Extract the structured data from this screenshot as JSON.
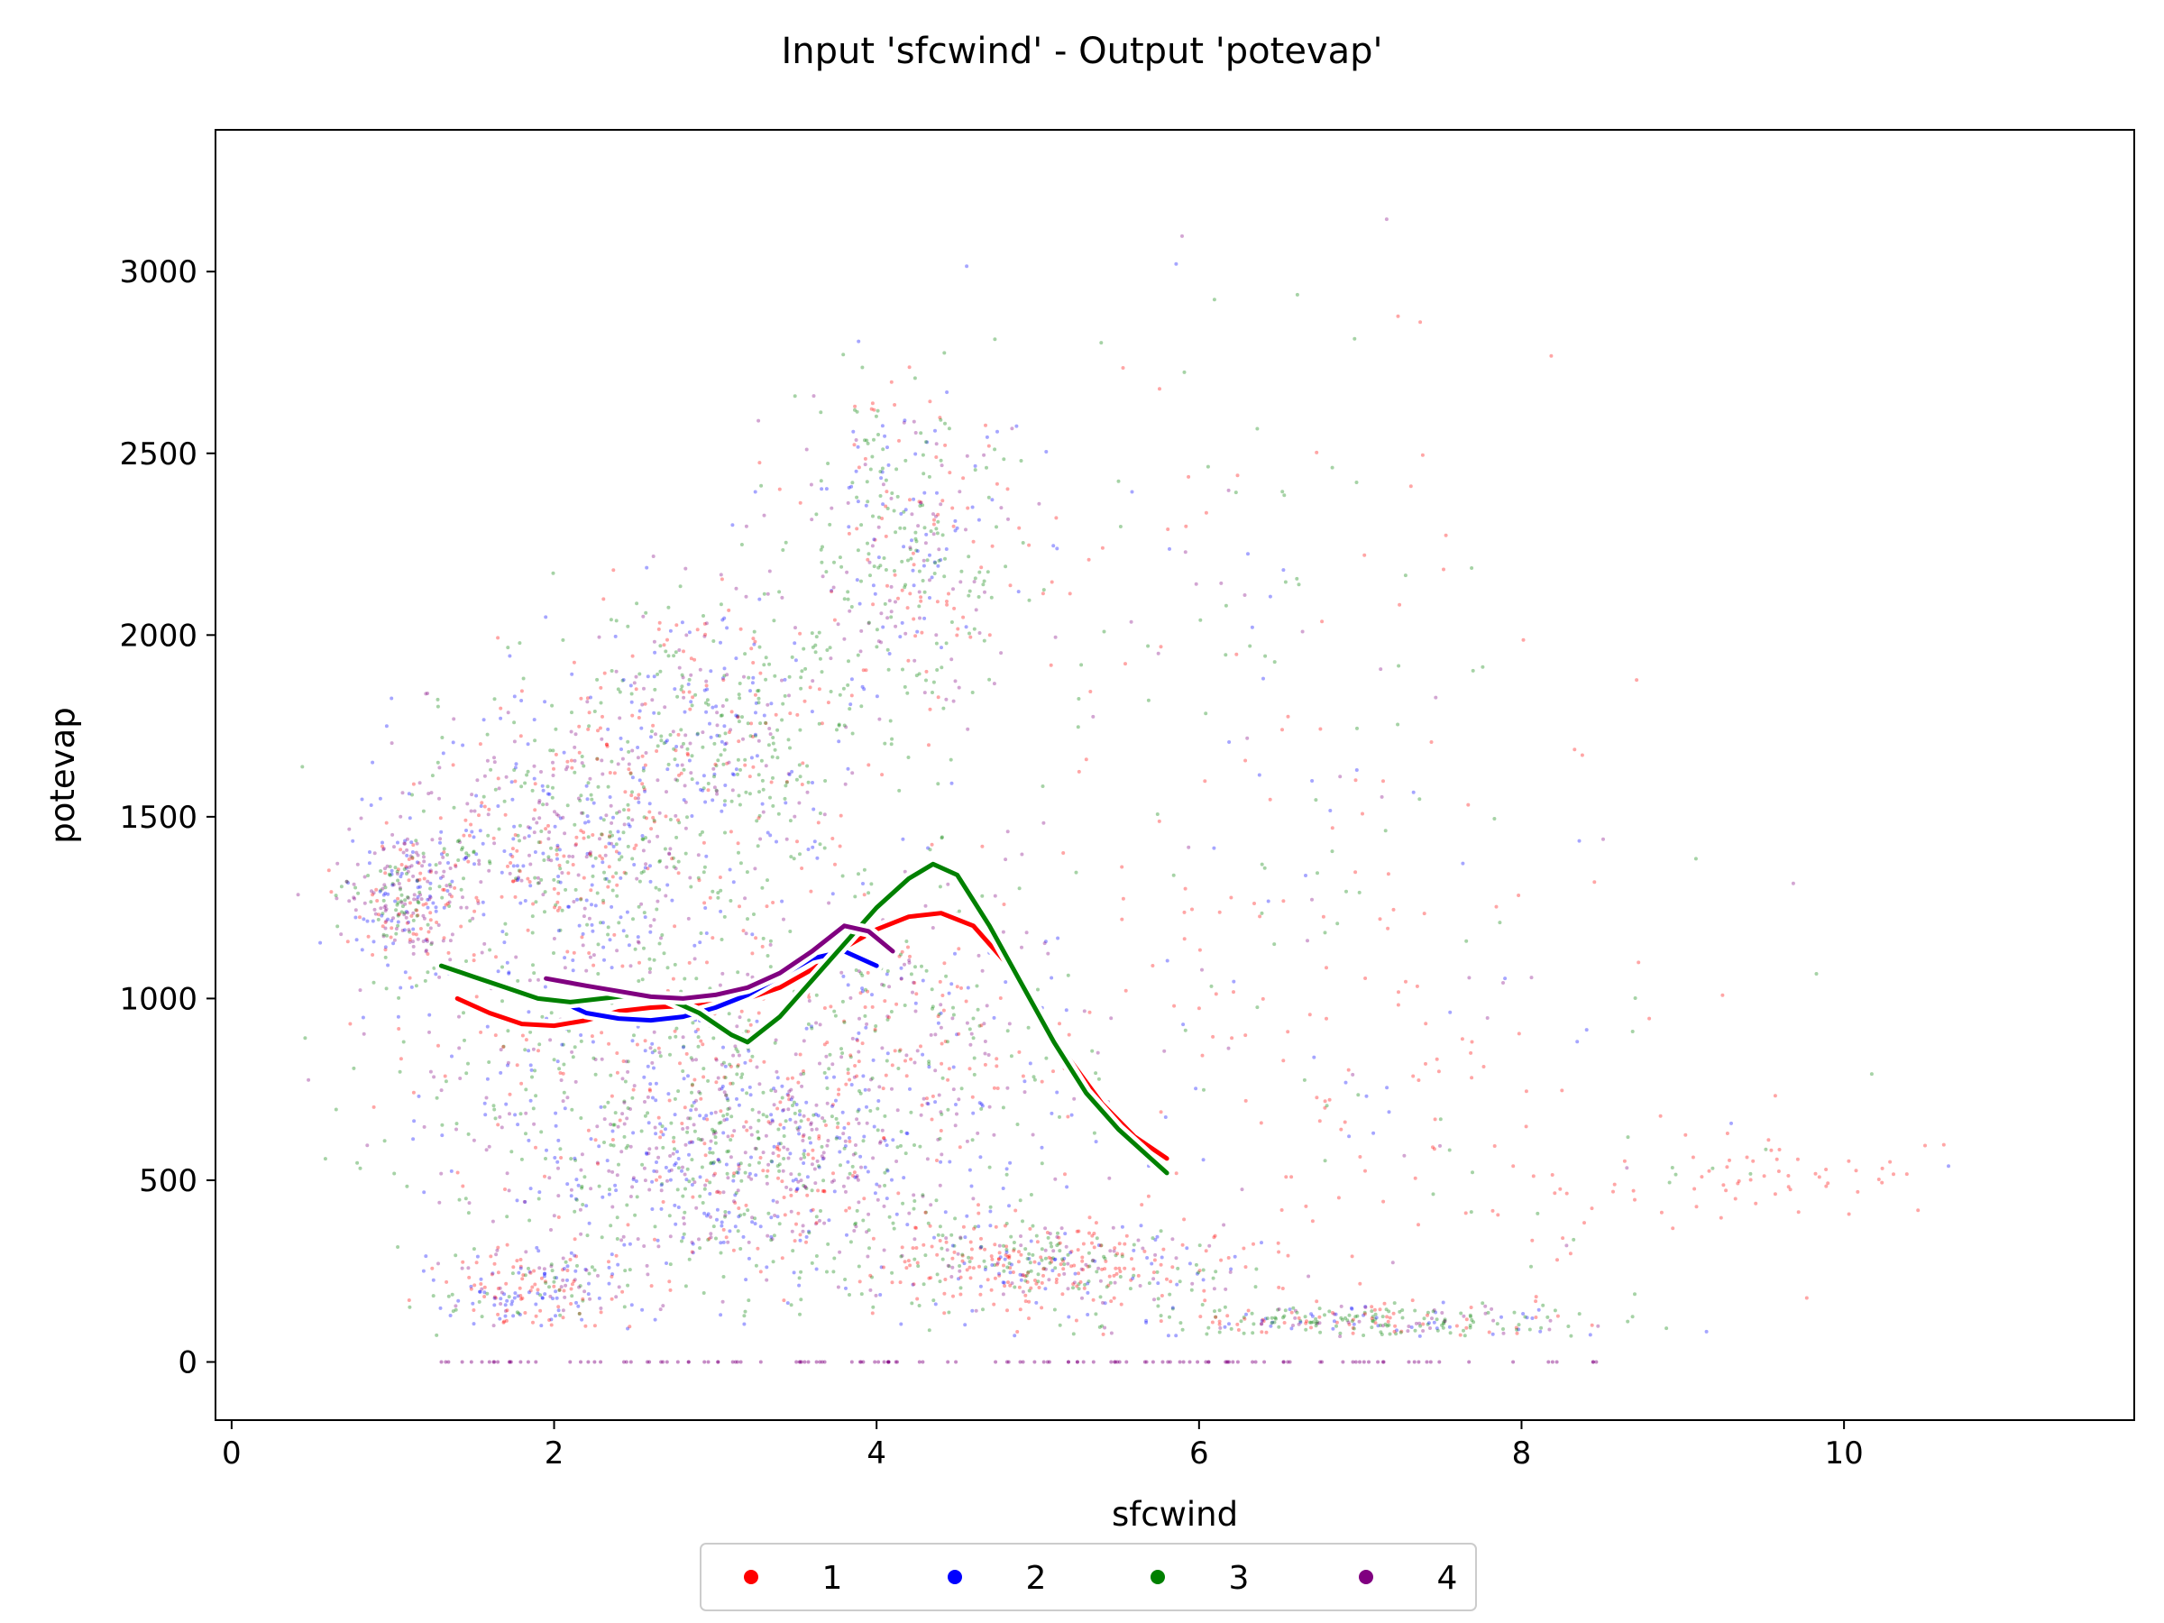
{
  "chart_data": {
    "type": "scatter",
    "title": "Input 'sfcwind' - Output 'potevap'",
    "xlabel": "sfcwind",
    "ylabel": "potevap",
    "xlim": [
      -0.1,
      11.8
    ],
    "ylim": [
      -160,
      3390
    ],
    "xticks": [
      0,
      2,
      4,
      6,
      8,
      10
    ],
    "yticks": [
      0,
      500,
      1000,
      1500,
      2000,
      2500,
      3000
    ],
    "legend_position": "bottom-center (below axes)",
    "grid": false,
    "series": [
      {
        "name": "1",
        "color": "#ff0000",
        "trend": [
          [
            1.4,
            1000
          ],
          [
            1.6,
            960
          ],
          [
            1.8,
            930
          ],
          [
            2.0,
            925
          ],
          [
            2.2,
            940
          ],
          [
            2.4,
            965
          ],
          [
            2.6,
            975
          ],
          [
            2.8,
            980
          ],
          [
            3.0,
            985
          ],
          [
            3.2,
            1000
          ],
          [
            3.4,
            1030
          ],
          [
            3.6,
            1080
          ],
          [
            3.8,
            1140
          ],
          [
            4.0,
            1190
          ],
          [
            4.2,
            1225
          ],
          [
            4.4,
            1235
          ],
          [
            4.6,
            1200
          ],
          [
            4.8,
            1100
          ],
          [
            5.0,
            960
          ],
          [
            5.2,
            830
          ],
          [
            5.4,
            710
          ],
          [
            5.6,
            620
          ],
          [
            5.8,
            560
          ]
        ]
      },
      {
        "name": "2",
        "color": "#0000ff",
        "trend": [
          [
            2.0,
            1000
          ],
          [
            2.2,
            960
          ],
          [
            2.4,
            945
          ],
          [
            2.6,
            940
          ],
          [
            2.8,
            950
          ],
          [
            3.0,
            975
          ],
          [
            3.2,
            1010
          ],
          [
            3.4,
            1060
          ],
          [
            3.6,
            1110
          ],
          [
            3.8,
            1130
          ],
          [
            4.0,
            1090
          ]
        ]
      },
      {
        "name": "3",
        "color": "#008000",
        "trend": [
          [
            1.3,
            1090
          ],
          [
            1.5,
            1060
          ],
          [
            1.7,
            1030
          ],
          [
            1.9,
            1000
          ],
          [
            2.1,
            990
          ],
          [
            2.3,
            1000
          ],
          [
            2.5,
            1010
          ],
          [
            2.7,
            1000
          ],
          [
            2.9,
            960
          ],
          [
            3.1,
            900
          ],
          [
            3.2,
            880
          ],
          [
            3.4,
            950
          ],
          [
            3.6,
            1050
          ],
          [
            3.8,
            1150
          ],
          [
            4.0,
            1250
          ],
          [
            4.2,
            1330
          ],
          [
            4.35,
            1370
          ],
          [
            4.5,
            1340
          ],
          [
            4.7,
            1200
          ],
          [
            4.9,
            1040
          ],
          [
            5.1,
            880
          ],
          [
            5.3,
            740
          ],
          [
            5.5,
            640
          ],
          [
            5.7,
            560
          ],
          [
            5.8,
            520
          ]
        ]
      },
      {
        "name": "4",
        "color": "#800080",
        "trend": [
          [
            1.95,
            1055
          ],
          [
            2.2,
            1035
          ],
          [
            2.4,
            1020
          ],
          [
            2.6,
            1005
          ],
          [
            2.8,
            1000
          ],
          [
            3.0,
            1010
          ],
          [
            3.2,
            1030
          ],
          [
            3.4,
            1070
          ],
          [
            3.6,
            1130
          ],
          [
            3.8,
            1200
          ],
          [
            3.95,
            1185
          ],
          [
            4.1,
            1130
          ]
        ]
      }
    ]
  }
}
